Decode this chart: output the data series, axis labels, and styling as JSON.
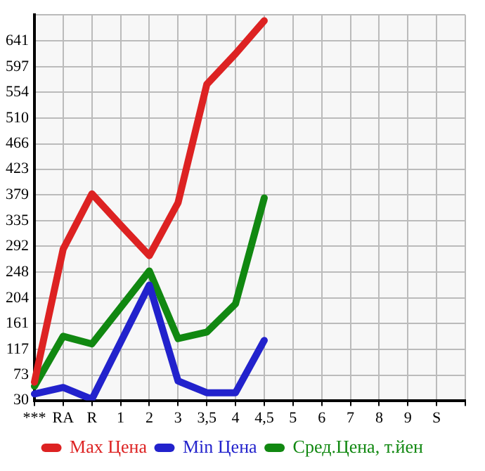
{
  "chart_data": {
    "type": "line",
    "categories": [
      "***",
      "RA",
      "R",
      "1",
      "2",
      "3",
      "3,5",
      "4",
      "4,5",
      "5",
      "6",
      "7",
      "8",
      "9",
      "S",
      null
    ],
    "series": [
      {
        "name": "Max Цена",
        "color": "#dd2222",
        "values": [
          61,
          287,
          381,
          328,
          276,
          366,
          567,
          619,
          675,
          null,
          null,
          null,
          null,
          null,
          null,
          null
        ]
      },
      {
        "name": "Min Цена",
        "color": "#2222cc",
        "values": [
          41,
          52,
          32,
          129,
          226,
          63,
          43,
          43,
          132,
          null,
          null,
          null,
          null,
          null,
          null,
          null
        ]
      },
      {
        "name": "Сред.Цена, т.йен",
        "color": "#118811",
        "values": [
          54,
          139,
          126,
          188,
          250,
          135,
          146,
          194,
          374,
          null,
          null,
          null,
          null,
          null,
          null,
          null
        ]
      }
    ],
    "ylim": [
      30,
      685
    ],
    "yticks": [
      30,
      73,
      117,
      161,
      204,
      248,
      292,
      335,
      379,
      423,
      466,
      510,
      554,
      597,
      641,
      {
        "value": 685,
        "label": null
      }
    ],
    "grid": true,
    "legend": "bottom",
    "marker": "none",
    "line_style": "solid"
  }
}
